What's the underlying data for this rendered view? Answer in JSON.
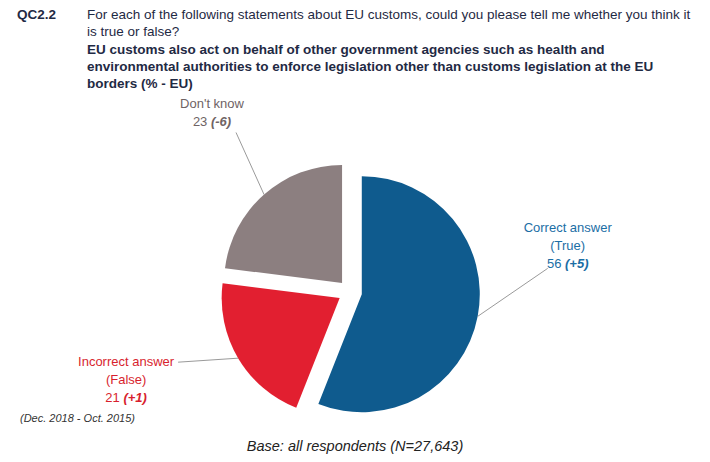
{
  "chart_data": {
    "type": "pie",
    "title": "QC2.2 For each of the following statements about EU customs, could you please tell me whether you think it is true or false?",
    "subtitle": "EU customs also act on behalf of other government agencies such as health and environmental authorities to enforce legislation other than customs legislation at the EU borders (% - EU)",
    "categories": [
      "Correct answer (True)",
      "Incorrect answer (False)",
      "Don't know"
    ],
    "values": [
      56,
      21,
      23
    ],
    "changes": [
      "(+5)",
      "(+1)",
      "(-6)"
    ],
    "colors": [
      "#0f5b8e",
      "#e21f30",
      "#8c7f80"
    ],
    "data_labels": true,
    "annotations": [
      "(Dec. 2018 - Oct. 2015)",
      "Base: all respondents (N=27,643)"
    ]
  }
}
